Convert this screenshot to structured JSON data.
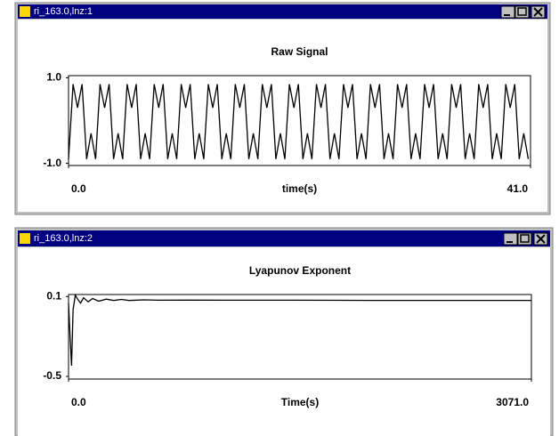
{
  "windows": [
    {
      "title": "ri_163.0,lnz:1"
    },
    {
      "title": "ri_163.0,lnz:2"
    }
  ],
  "chart_data": [
    {
      "type": "line",
      "title": "Raw Signal",
      "xlabel": "time(s)",
      "xlim": [
        0,
        41
      ],
      "xticks": [
        {
          "value": 0,
          "label": "0.0"
        },
        {
          "value": 41,
          "label": "41.0"
        }
      ],
      "ylim": [
        -1.05,
        1.05
      ],
      "yticks": [
        {
          "value": 1,
          "label": "1.0"
        },
        {
          "value": -1,
          "label": "-1.0"
        }
      ],
      "color": "#000000",
      "x": [
        0,
        0.4,
        0.8,
        1.2,
        1.6,
        2,
        2.4,
        2.8,
        3.2,
        3.6,
        4,
        4.4,
        4.8,
        5.2,
        5.6,
        6,
        6.4,
        6.8,
        7.2,
        7.6,
        8,
        8.4,
        8.8,
        9.2,
        9.6,
        10,
        10.4,
        10.8,
        11.2,
        11.6,
        12,
        12.4,
        12.8,
        13.2,
        13.6,
        14,
        14.4,
        14.8,
        15.2,
        15.6,
        16,
        16.4,
        16.8,
        17.2,
        17.6,
        18,
        18.4,
        18.8,
        19.2,
        19.6,
        20,
        20.4,
        20.8,
        21.2,
        21.6,
        22,
        22.4,
        22.8,
        23.2,
        23.6,
        24,
        24.4,
        24.8,
        25.2,
        25.6,
        26,
        26.4,
        26.8,
        27.2,
        27.6,
        28,
        28.4,
        28.8,
        29.2,
        29.6,
        30,
        30.4,
        30.8,
        31.2,
        31.6,
        32,
        32.4,
        32.8,
        33.2,
        33.6,
        34,
        34.4,
        34.8,
        35.2,
        35.6,
        36,
        36.4,
        36.8,
        37.2,
        37.6,
        38,
        38.4,
        38.8,
        39.2,
        39.6,
        40,
        40.4,
        40.8
      ],
      "values": [
        -0.9,
        0.85,
        0.3,
        0.85,
        -0.9,
        -0.3,
        -0.9,
        0.85,
        0.3,
        0.85,
        -0.9,
        -0.3,
        -0.9,
        0.85,
        0.3,
        0.85,
        -0.9,
        -0.3,
        -0.9,
        0.85,
        0.3,
        0.85,
        -0.9,
        -0.3,
        -0.9,
        0.85,
        0.3,
        0.85,
        -0.9,
        -0.3,
        -0.9,
        0.85,
        0.3,
        0.85,
        -0.9,
        -0.3,
        -0.9,
        0.85,
        0.3,
        0.85,
        -0.9,
        -0.3,
        -0.9,
        0.85,
        0.3,
        0.85,
        -0.9,
        -0.3,
        -0.9,
        0.85,
        0.3,
        0.85,
        -0.9,
        -0.3,
        -0.9,
        0.85,
        0.3,
        0.85,
        -0.9,
        -0.3,
        -0.9,
        0.85,
        0.3,
        0.85,
        -0.9,
        -0.3,
        -0.9,
        0.85,
        0.3,
        0.85,
        -0.9,
        -0.3,
        -0.9,
        0.85,
        0.3,
        0.85,
        -0.9,
        -0.3,
        -0.9,
        0.85,
        0.3,
        0.85,
        -0.9,
        -0.3,
        -0.9,
        0.85,
        0.3,
        0.85,
        -0.9,
        -0.3,
        -0.9,
        0.85,
        0.3,
        0.85,
        -0.9,
        -0.3,
        -0.9,
        0.85,
        0.3,
        0.85,
        -0.9,
        -0.3,
        -0.9
      ]
    },
    {
      "type": "line",
      "title": "Lyapunov Exponent",
      "xlabel": "Time(s)",
      "xlim": [
        0,
        3071
      ],
      "xticks": [
        {
          "value": 0,
          "label": "0.0"
        },
        {
          "value": 3071,
          "label": "3071.0"
        }
      ],
      "ylim": [
        -0.52,
        0.115
      ],
      "yticks": [
        0.1,
        -0.5
      ],
      "color": "#000000",
      "x": [
        0,
        10,
        20,
        30,
        45,
        60,
        80,
        100,
        130,
        160,
        200,
        250,
        300,
        350,
        400,
        500,
        600,
        800,
        1000,
        1500,
        2000,
        2500,
        3071
      ],
      "values": [
        0.05,
        -0.2,
        -0.42,
        0.0,
        0.11,
        0.08,
        0.05,
        0.09,
        0.06,
        0.085,
        0.065,
        0.08,
        0.07,
        0.078,
        0.07,
        0.075,
        0.072,
        0.073,
        0.072,
        0.072,
        0.071,
        0.071,
        0.071
      ]
    }
  ]
}
